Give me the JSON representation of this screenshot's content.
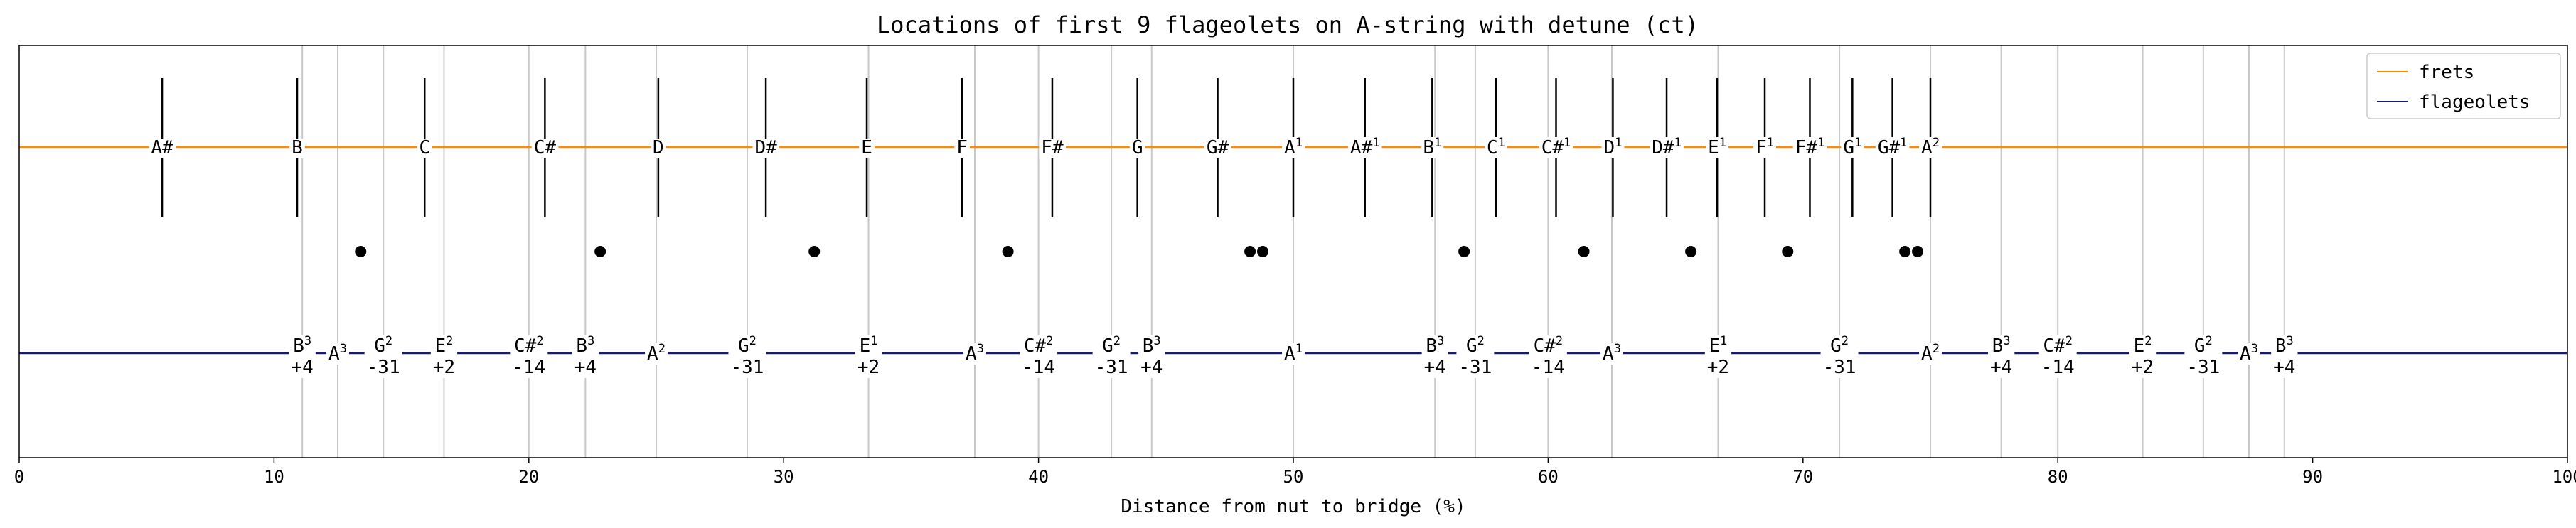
{
  "chart_data": {
    "type": "line",
    "title": "Locations of first 9 flageolets on A-string with detune (ct)",
    "xlabel": "Distance from nut to bridge (%)",
    "ylabel": "",
    "xlim": [
      0,
      100
    ],
    "xticks": [
      0,
      10,
      20,
      30,
      40,
      50,
      60,
      70,
      80,
      90,
      100
    ],
    "grid": "vertical lines at flageolet positions",
    "legend": {
      "placement": "top-right",
      "entries": [
        "frets",
        "flageolets"
      ]
    },
    "colors": {
      "frets": "#ff8c00",
      "flageolets": "#191970",
      "grid": "#c8c8c8",
      "marker": "#000000"
    },
    "series": [
      {
        "name": "frets",
        "frets": [
          {
            "x": 5.61,
            "base": "A#",
            "sup": ""
          },
          {
            "x": 10.91,
            "base": "B",
            "sup": ""
          },
          {
            "x": 15.91,
            "base": "C",
            "sup": ""
          },
          {
            "x": 20.63,
            "base": "C#",
            "sup": ""
          },
          {
            "x": 25.08,
            "base": "D",
            "sup": ""
          },
          {
            "x": 29.3,
            "base": "D#",
            "sup": ""
          },
          {
            "x": 33.26,
            "base": "E",
            "sup": ""
          },
          {
            "x": 37.0,
            "base": "F",
            "sup": ""
          },
          {
            "x": 40.54,
            "base": "F#",
            "sup": ""
          },
          {
            "x": 43.88,
            "base": "G",
            "sup": ""
          },
          {
            "x": 47.03,
            "base": "G#",
            "sup": ""
          },
          {
            "x": 50.0,
            "base": "A",
            "sup": "1"
          },
          {
            "x": 52.81,
            "base": "A#",
            "sup": "1"
          },
          {
            "x": 55.45,
            "base": "B",
            "sup": "1"
          },
          {
            "x": 57.95,
            "base": "C",
            "sup": "1"
          },
          {
            "x": 60.31,
            "base": "C#",
            "sup": "1"
          },
          {
            "x": 62.54,
            "base": "D",
            "sup": "1"
          },
          {
            "x": 64.65,
            "base": "D#",
            "sup": "1"
          },
          {
            "x": 66.63,
            "base": "E",
            "sup": "1"
          },
          {
            "x": 68.5,
            "base": "F",
            "sup": "1"
          },
          {
            "x": 70.27,
            "base": "F#",
            "sup": "1"
          },
          {
            "x": 71.94,
            "base": "G",
            "sup": "1"
          },
          {
            "x": 73.51,
            "base": "G#",
            "sup": "1"
          },
          {
            "x": 75.0,
            "base": "A",
            "sup": "2"
          }
        ]
      },
      {
        "name": "flageolets",
        "points": [
          {
            "x": 11.11,
            "base": "B",
            "sup": "3",
            "detune": "+4"
          },
          {
            "x": 12.5,
            "base": "A",
            "sup": "3",
            "detune": ""
          },
          {
            "x": 14.29,
            "base": "G",
            "sup": "2",
            "detune": "-31"
          },
          {
            "x": 16.67,
            "base": "E",
            "sup": "2",
            "detune": "+2"
          },
          {
            "x": 20.0,
            "base": "C#",
            "sup": "2",
            "detune": "-14"
          },
          {
            "x": 22.22,
            "base": "B",
            "sup": "3",
            "detune": "+4"
          },
          {
            "x": 25.0,
            "base": "A",
            "sup": "2",
            "detune": ""
          },
          {
            "x": 28.57,
            "base": "G",
            "sup": "2",
            "detune": "-31"
          },
          {
            "x": 33.33,
            "base": "E",
            "sup": "1",
            "detune": "+2"
          },
          {
            "x": 37.5,
            "base": "A",
            "sup": "3",
            "detune": ""
          },
          {
            "x": 40.0,
            "base": "C#",
            "sup": "2",
            "detune": "-14"
          },
          {
            "x": 42.86,
            "base": "G",
            "sup": "2",
            "detune": "-31"
          },
          {
            "x": 44.44,
            "base": "B",
            "sup": "3",
            "detune": "+4"
          },
          {
            "x": 50.0,
            "base": "A",
            "sup": "1",
            "detune": ""
          },
          {
            "x": 55.56,
            "base": "B",
            "sup": "3",
            "detune": "+4"
          },
          {
            "x": 57.14,
            "base": "G",
            "sup": "2",
            "detune": "-31"
          },
          {
            "x": 60.0,
            "base": "C#",
            "sup": "2",
            "detune": "-14"
          },
          {
            "x": 62.5,
            "base": "A",
            "sup": "3",
            "detune": ""
          },
          {
            "x": 66.67,
            "base": "E",
            "sup": "1",
            "detune": "+2"
          },
          {
            "x": 71.43,
            "base": "G",
            "sup": "2",
            "detune": "-31"
          },
          {
            "x": 75.0,
            "base": "A",
            "sup": "2",
            "detune": ""
          },
          {
            "x": 77.78,
            "base": "B",
            "sup": "3",
            "detune": "+4"
          },
          {
            "x": 80.0,
            "base": "C#",
            "sup": "2",
            "detune": "-14"
          },
          {
            "x": 83.33,
            "base": "E",
            "sup": "2",
            "detune": "+2"
          },
          {
            "x": 85.71,
            "base": "G",
            "sup": "2",
            "detune": "-31"
          },
          {
            "x": 87.5,
            "base": "A",
            "sup": "3",
            "detune": ""
          },
          {
            "x": 88.89,
            "base": "B",
            "sup": "3",
            "detune": "+4"
          }
        ]
      }
    ],
    "markers": [
      13.4,
      22.8,
      31.2,
      38.8,
      48.3,
      48.8,
      56.7,
      61.4,
      65.6,
      69.4,
      74.0,
      74.5
    ]
  }
}
